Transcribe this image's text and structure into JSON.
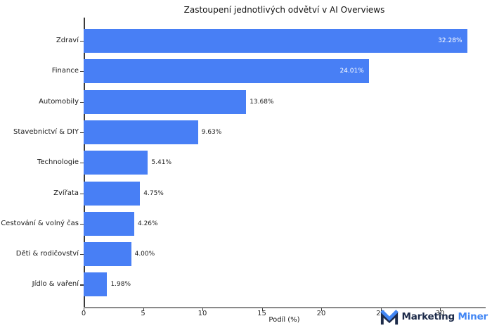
{
  "chart_data": {
    "type": "bar",
    "orientation": "horizontal",
    "title": "Zastoupení jednotlivých odvětví v AI Overviews",
    "xlabel": "Podíl (%)",
    "categories": [
      "Zdraví",
      "Finance",
      "Automobily",
      "Stavebnictví & DIY",
      "Technologie",
      "Zvířata",
      "Cestování & volný čas",
      "Děti & rodičovství",
      "Jídlo & vaření"
    ],
    "values": [
      32.28,
      24.01,
      13.68,
      9.63,
      5.41,
      4.75,
      4.26,
      4.0,
      1.98
    ],
    "value_labels": [
      "32.28%",
      "24.01%",
      "13.68%",
      "9.63%",
      "5.41%",
      "4.75%",
      "4.26%",
      "4.00%",
      "1.98%"
    ],
    "xticks": [
      0,
      5,
      10,
      15,
      20,
      25,
      30
    ],
    "xtick_labels": [
      "0",
      "5",
      "10",
      "15",
      "20",
      "25",
      "30"
    ],
    "xlim": [
      0,
      33.8
    ],
    "grid": false,
    "legend": false,
    "bar_color": "#487FF5",
    "inside_label_color": "#ffffff",
    "outside_label_color": "#1a1a1a"
  },
  "branding": {
    "brand_word_1": "Marketing",
    "brand_word_2": "Miner",
    "brand_dark_color": "#1d2b4a",
    "brand_blue_color": "#4286f4"
  }
}
